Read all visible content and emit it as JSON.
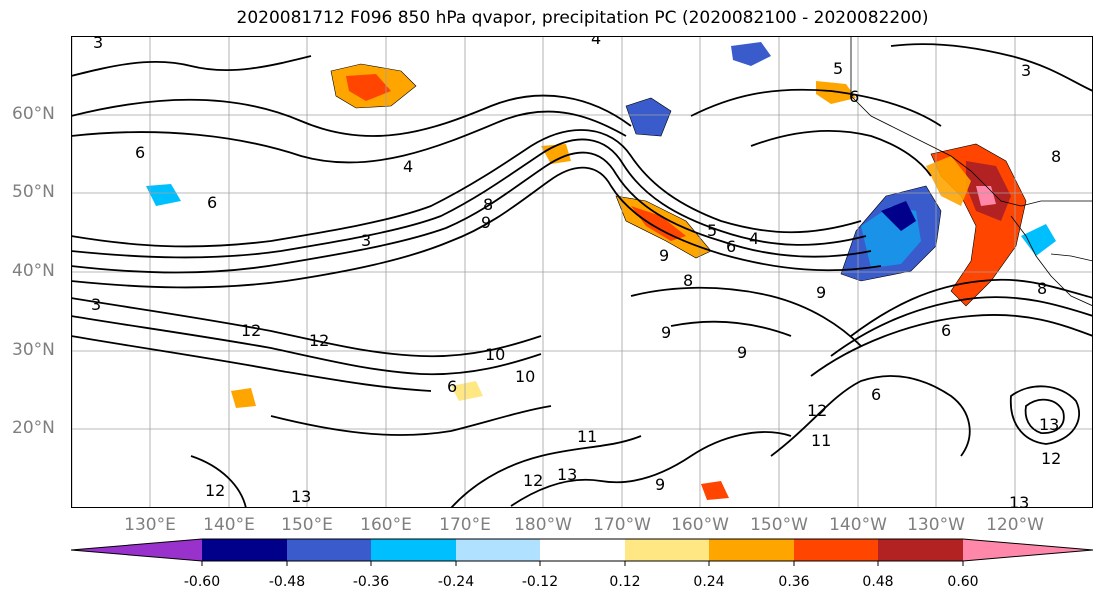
{
  "title": "2020081712 F096 850 hPa qvapor, precipitation PC (2020082100 - 2020082200)",
  "lat_labels": [
    "60°N",
    "50°N",
    "40°N",
    "30°N",
    "20°N"
  ],
  "lon_labels": [
    "130°E",
    "140°E",
    "150°E",
    "160°E",
    "170°E",
    "180°W",
    "170°W",
    "160°W",
    "150°W",
    "140°W",
    "130°W",
    "120°W"
  ],
  "colorbar": {
    "colors": [
      "#9932cc",
      "#00008b",
      "#3a5bcc",
      "#00bfff",
      "#b0e2ff",
      "#ffffff",
      "#ffe884",
      "#ffa500",
      "#ff4500",
      "#b22222",
      "#ff88aa"
    ],
    "tick_labels": [
      "-0.60",
      "-0.48",
      "-0.36",
      "-0.24",
      "-0.12",
      "0.12",
      "0.24",
      "0.36",
      "0.48",
      "0.60"
    ]
  },
  "contour_labels": [
    "3",
    "4",
    "3",
    "5",
    "6",
    "6",
    "8",
    "3",
    "4",
    "6",
    "9",
    "8",
    "6",
    "4",
    "5",
    "6",
    "3",
    "9",
    "8",
    "9",
    "8",
    "12",
    "9",
    "10",
    "12",
    "10",
    "9",
    "6",
    "12",
    "11",
    "13",
    "12",
    "13",
    "11",
    "9",
    "12",
    "13",
    "6",
    "12",
    "13"
  ]
}
